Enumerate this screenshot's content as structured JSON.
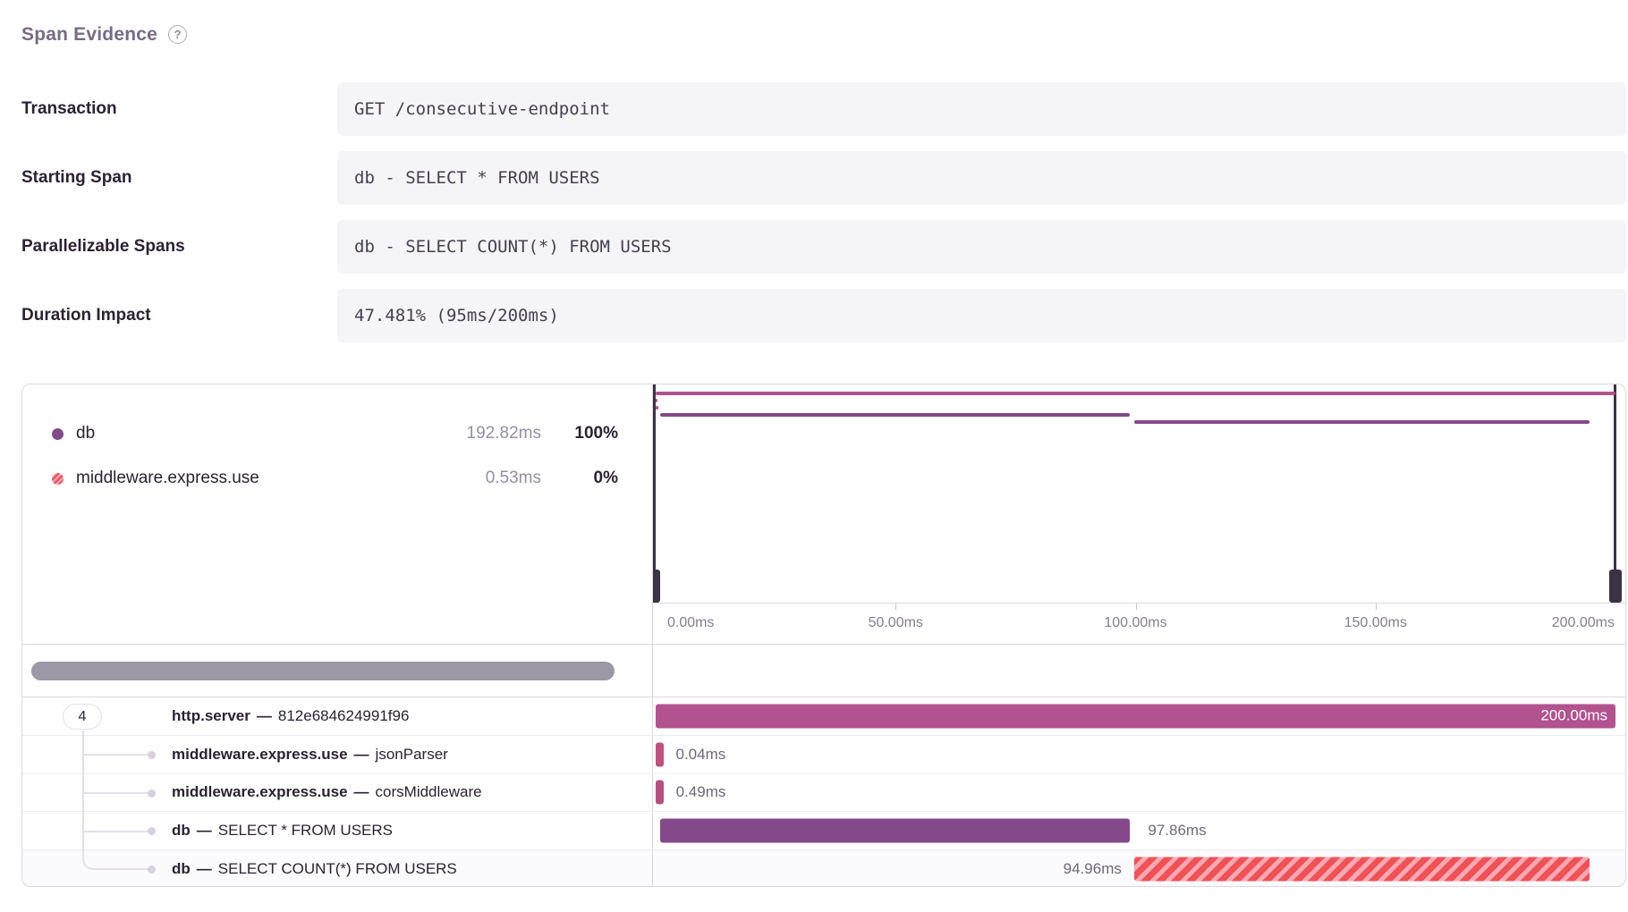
{
  "title": {
    "text": "Span Evidence"
  },
  "help_icon": {
    "glyph": "?"
  },
  "fields": [
    {
      "label": "Transaction",
      "value": "GET /consecutive-endpoint"
    },
    {
      "label": "Starting Span",
      "value": "db - SELECT * FROM USERS"
    },
    {
      "label": "Parallelizable Spans",
      "value": "db - SELECT COUNT(*) FROM USERS"
    },
    {
      "label": "Duration Impact",
      "value": "47.481% (95ms/200ms)"
    }
  ],
  "legend": [
    {
      "op": "db",
      "duration": "192.82ms",
      "percent": "100%",
      "color": "#83498a",
      "swatch_style": "solid"
    },
    {
      "op": "middleware.express.use",
      "duration": "0.53ms",
      "percent": "0%",
      "color": "#ee5360",
      "swatch_style": "striped"
    }
  ],
  "chart": {
    "max_ms": 200
  },
  "axis_ticks": [
    {
      "label": "0.00ms",
      "ms": 0,
      "align": "left"
    },
    {
      "label": "50.00ms",
      "ms": 50,
      "align": "center"
    },
    {
      "label": "100.00ms",
      "ms": 100,
      "align": "center"
    },
    {
      "label": "150.00ms",
      "ms": 150,
      "align": "center"
    },
    {
      "label": "200.00ms",
      "ms": 200,
      "align": "right"
    }
  ],
  "spans": [
    {
      "badge": "4",
      "op": "http.server",
      "separator": "—",
      "description": "812e684624991f96",
      "duration_label": "200.00ms",
      "start_ms": 0,
      "duration_ms": 200,
      "color": "#b2528e",
      "minimap_color": "#b2528e",
      "label_position": "inside",
      "striped": false
    },
    {
      "op": "middleware.express.use",
      "separator": "—",
      "description": "jsonParser",
      "duration_label": "0.04ms",
      "start_ms": 0,
      "duration_ms": 0.04,
      "color": "#c2517f",
      "minimap_color": "#c2517f",
      "label_position": "after",
      "striped": false
    },
    {
      "op": "middleware.express.use",
      "separator": "—",
      "description": "corsMiddleware",
      "duration_label": "0.49ms",
      "start_ms": 0,
      "duration_ms": 0.49,
      "color": "#b84f82",
      "minimap_color": "#b84f82",
      "label_position": "after",
      "striped": false
    },
    {
      "op": "db",
      "separator": "—",
      "description": "SELECT * FROM USERS",
      "duration_label": "97.86ms",
      "start_ms": 1.0,
      "duration_ms": 97.86,
      "color": "#83498a",
      "minimap_color": "#83498a",
      "label_position": "after",
      "striped": false
    },
    {
      "op": "db",
      "separator": "—",
      "description": "SELECT COUNT(*) FROM USERS",
      "duration_label": "94.96ms",
      "start_ms": 99.7,
      "duration_ms": 94.96,
      "color": "#ef545b",
      "minimap_color": "#83498a",
      "label_position": "before",
      "striped": true
    }
  ],
  "colors": {
    "accent_magenta": "#b2528e",
    "accent_purple": "#83498a",
    "stripe_red": "#ef545b",
    "stripe_pink": "#f8abb3",
    "handle": "#3b3344",
    "scrollbar": "#9c98a5"
  }
}
